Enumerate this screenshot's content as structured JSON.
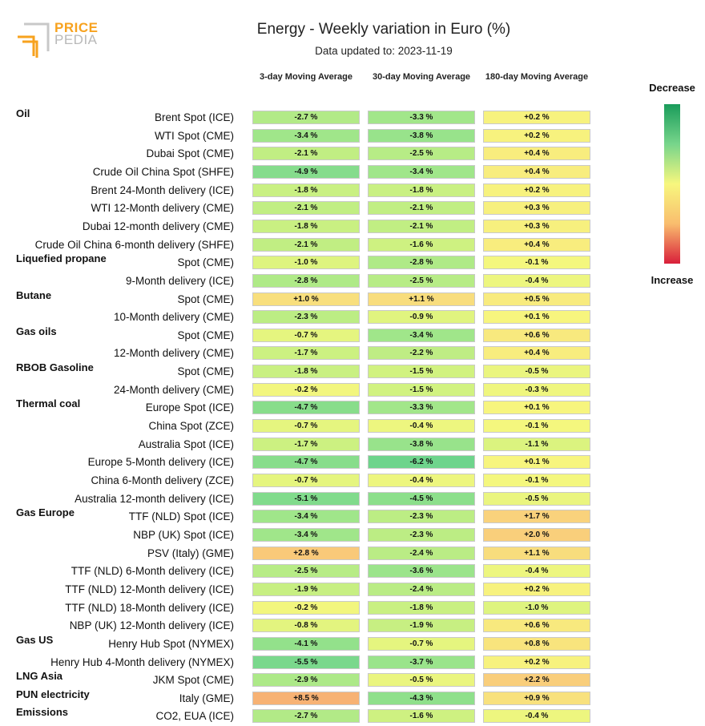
{
  "logo": {
    "line1": "PRICE",
    "line2": "PEDIA"
  },
  "title": "Energy - Weekly variation in Euro (%)",
  "subtitle": "Data updated to: 2023-11-19",
  "legend": {
    "top": "Decrease",
    "bottom": "Increase"
  },
  "columns": [
    "3-day Moving Average",
    "30-day Moving Average",
    "180-day Moving Average"
  ],
  "chart_data": {
    "type": "table",
    "rows": [
      {
        "group": "Oil",
        "label": "Brent Spot (ICE)",
        "values": [
          "-2.7 %",
          "-3.3 %",
          "+0.2 %"
        ]
      },
      {
        "group": "",
        "label": "WTI Spot (CME)",
        "values": [
          "-3.4 %",
          "-3.8 %",
          "+0.2 %"
        ]
      },
      {
        "group": "",
        "label": "Dubai Spot (CME)",
        "values": [
          "-2.1 %",
          "-2.5 %",
          "+0.4 %"
        ]
      },
      {
        "group": "",
        "label": "Crude Oil China Spot (SHFE)",
        "values": [
          "-4.9 %",
          "-3.4 %",
          "+0.4 %"
        ]
      },
      {
        "group": "",
        "label": "Brent 24-Month delivery (ICE)",
        "values": [
          "-1.8 %",
          "-1.8 %",
          "+0.2 %"
        ]
      },
      {
        "group": "",
        "label": "WTI 12-Month delivery (CME)",
        "values": [
          "-2.1 %",
          "-2.1 %",
          "+0.3 %"
        ]
      },
      {
        "group": "",
        "label": "Dubai 12-month delivery (CME)",
        "values": [
          "-1.8 %",
          "-2.1 %",
          "+0.3 %"
        ]
      },
      {
        "group": "",
        "label": "Crude Oil China 6-month delivery (SHFE)",
        "values": [
          "-2.1 %",
          "-1.6 %",
          "+0.4 %"
        ]
      },
      {
        "group": "Liquefied propane",
        "label": "Spot (CME)",
        "values": [
          "-1.0 %",
          "-2.8 %",
          "-0.1 %"
        ]
      },
      {
        "group": "",
        "label": "9-Month delivery (ICE)",
        "values": [
          "-2.8 %",
          "-2.5 %",
          "-0.4 %"
        ]
      },
      {
        "group": "Butane",
        "label": "Spot (CME)",
        "values": [
          "+1.0 %",
          "+1.1 %",
          "+0.5 %"
        ]
      },
      {
        "group": "",
        "label": "10-Month delivery (CME)",
        "values": [
          "-2.3 %",
          "-0.9 %",
          "+0.1 %"
        ]
      },
      {
        "group": "Gas oils",
        "label": "Spot (CME)",
        "values": [
          "-0.7 %",
          "-3.4 %",
          "+0.6 %"
        ]
      },
      {
        "group": "",
        "label": "12-Month delivery (CME)",
        "values": [
          "-1.7 %",
          "-2.2 %",
          "+0.4 %"
        ]
      },
      {
        "group": "RBOB Gasoline",
        "label": "Spot (CME)",
        "values": [
          "-1.8 %",
          "-1.5 %",
          "-0.5 %"
        ]
      },
      {
        "group": "",
        "label": "24-Month delivery (CME)",
        "values": [
          "-0.2 %",
          "-1.5 %",
          "-0.3 %"
        ]
      },
      {
        "group": "Thermal coal",
        "label": "Europe Spot (ICE)",
        "values": [
          "-4.7 %",
          "-3.3 %",
          "+0.1 %"
        ]
      },
      {
        "group": "",
        "label": "China Spot (ZCE)",
        "values": [
          "-0.7 %",
          "-0.4 %",
          "-0.1 %"
        ]
      },
      {
        "group": "",
        "label": "Australia Spot (ICE)",
        "values": [
          "-1.7 %",
          "-3.8 %",
          "-1.1 %"
        ]
      },
      {
        "group": "",
        "label": "Europe 5-Month delivery (ICE)",
        "values": [
          "-4.7 %",
          "-6.2 %",
          "+0.1 %"
        ]
      },
      {
        "group": "",
        "label": "China 6-Month delivery (ZCE)",
        "values": [
          "-0.7 %",
          "-0.4 %",
          "-0.1 %"
        ]
      },
      {
        "group": "",
        "label": "Australia 12-month delivery (ICE)",
        "values": [
          "-5.1 %",
          "-4.5 %",
          "-0.5 %"
        ]
      },
      {
        "group": "Gas Europe",
        "label": "TTF (NLD) Spot (ICE)",
        "values": [
          "-3.4 %",
          "-2.3 %",
          "+1.7 %"
        ]
      },
      {
        "group": "",
        "label": "NBP (UK) Spot (ICE)",
        "values": [
          "-3.4 %",
          "-2.3 %",
          "+2.0 %"
        ]
      },
      {
        "group": "",
        "label": "PSV (Italy) (GME)",
        "values": [
          "+2.8 %",
          "-2.4 %",
          "+1.1 %"
        ]
      },
      {
        "group": "",
        "label": "TTF (NLD) 6-Month delivery (ICE)",
        "values": [
          "-2.5 %",
          "-3.6 %",
          "-0.4 %"
        ]
      },
      {
        "group": "",
        "label": "TTF (NLD) 12-Month delivery (ICE)",
        "values": [
          "-1.9 %",
          "-2.4 %",
          "+0.2 %"
        ]
      },
      {
        "group": "",
        "label": "TTF (NLD) 18-Month delivery (ICE)",
        "values": [
          "-0.2 %",
          "-1.8 %",
          "-1.0 %"
        ]
      },
      {
        "group": "",
        "label": "NBP (UK) 12-Month delivery (ICE)",
        "values": [
          "-0.8 %",
          "-1.9 %",
          "+0.6 %"
        ]
      },
      {
        "group": "Gas US",
        "label": "Henry Hub Spot (NYMEX)",
        "values": [
          "-4.1 %",
          "-0.7 %",
          "+0.8 %"
        ]
      },
      {
        "group": "",
        "label": "Henry Hub 4-Month delivery (NYMEX)",
        "values": [
          "-5.5 %",
          "-3.7 %",
          "+0.2 %"
        ]
      },
      {
        "group": "LNG Asia",
        "label": "JKM Spot (CME)",
        "values": [
          "-2.9 %",
          "-0.5 %",
          "+2.2 %"
        ]
      },
      {
        "group": "PUN electricity",
        "label": "Italy (GME)",
        "values": [
          "+8.5 %",
          "-4.3 %",
          "+0.9 %"
        ]
      },
      {
        "group": "Emissions",
        "label": "CO2, EUA (ICE)",
        "values": [
          "-2.7 %",
          "-1.6 %",
          "-0.4 %"
        ]
      }
    ]
  }
}
